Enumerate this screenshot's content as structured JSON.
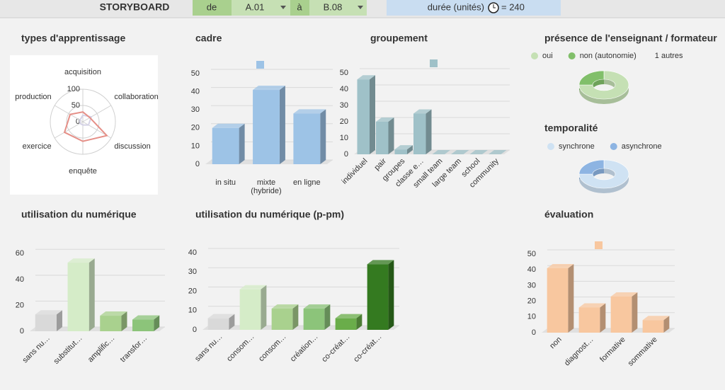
{
  "header": {
    "title": "STORYBOARD",
    "from_label": "de",
    "from_value": "A.01",
    "to_label": "à",
    "to_value": "B.08",
    "duration_label": "durée (unités)",
    "duration_value": "= 240"
  },
  "chart_data": [
    {
      "type": "radar",
      "title": "types d'apprentissage",
      "categories": [
        "acquisition",
        "collaboration",
        "discussion",
        "enquête",
        "exercice",
        "production"
      ],
      "rlim": [
        0,
        100
      ],
      "rticks": [
        0,
        50,
        100
      ],
      "series": [
        {
          "color": "#e58f87",
          "values": [
            30,
            25,
            85,
            60,
            65,
            45
          ]
        },
        {
          "color": "#d5d3e6",
          "values": [
            20,
            30,
            20,
            10,
            10,
            10
          ]
        }
      ]
    },
    {
      "type": "bar",
      "title": "cadre",
      "categories": [
        "in situ",
        "mixte (hybride)",
        "en ligne"
      ],
      "values": [
        20,
        41,
        28
      ],
      "color": "#9dc3e6",
      "ylim": [
        0,
        50
      ],
      "yticks": [
        0,
        10,
        20,
        30,
        40,
        50
      ]
    },
    {
      "type": "bar",
      "title": "groupement",
      "categories": [
        "individuel",
        "pair",
        "groupes",
        "classe e…",
        "small team",
        "large team",
        "school",
        "community"
      ],
      "values": [
        46,
        20,
        3,
        25,
        0,
        0,
        0,
        0
      ],
      "color": "#9fc1c8",
      "ylim": [
        0,
        50
      ],
      "yticks": [
        0,
        10,
        20,
        30,
        40,
        50
      ]
    },
    {
      "type": "donut",
      "title": "présence de l'enseignant / formateur",
      "categories": [
        "oui",
        "non (autonomie)"
      ],
      "values": [
        75,
        25
      ],
      "colors": [
        "#c5e0b4",
        "#81bf6a"
      ],
      "others_label": "1 autres"
    },
    {
      "type": "donut",
      "title": "temporalité",
      "categories": [
        "synchrone",
        "asynchrone"
      ],
      "values": [
        75,
        25
      ],
      "colors": [
        "#cfe2f3",
        "#8db4e2"
      ]
    },
    {
      "type": "bar",
      "title": "utilisation du numérique",
      "categories": [
        "sans nu…",
        "substitut…",
        "amplific…",
        "transfor…"
      ],
      "values": [
        13,
        53,
        12,
        9
      ],
      "colors": [
        "#d9d9d9",
        "#d5ecc8",
        "#a9d18e",
        "#8cc47a"
      ],
      "ylim": [
        0,
        70
      ],
      "yticks": [
        0,
        20,
        40,
        60
      ]
    },
    {
      "type": "bar",
      "title": "utilisation du numérique (p-pm)",
      "categories": [
        "sans nu…",
        "consom…",
        "consom…",
        "création…",
        "co-créat…",
        "co-créat…"
      ],
      "values": [
        6,
        21,
        11,
        11,
        6,
        34
      ],
      "colors": [
        "#d9d9d9",
        "#d5ecc8",
        "#a9d18e",
        "#8cc47a",
        "#6aad4a",
        "#347a20"
      ],
      "ylim": [
        0,
        40
      ],
      "yticks": [
        0,
        10,
        20,
        30,
        40
      ]
    },
    {
      "type": "bar",
      "title": "évaluation",
      "categories": [
        "non",
        "diagnost…",
        "formative",
        "sommative"
      ],
      "values": [
        41,
        16,
        23,
        8
      ],
      "color": "#f8c79f",
      "ylim": [
        0,
        50
      ],
      "yticks": [
        0,
        10,
        20,
        30,
        40,
        50
      ]
    }
  ]
}
